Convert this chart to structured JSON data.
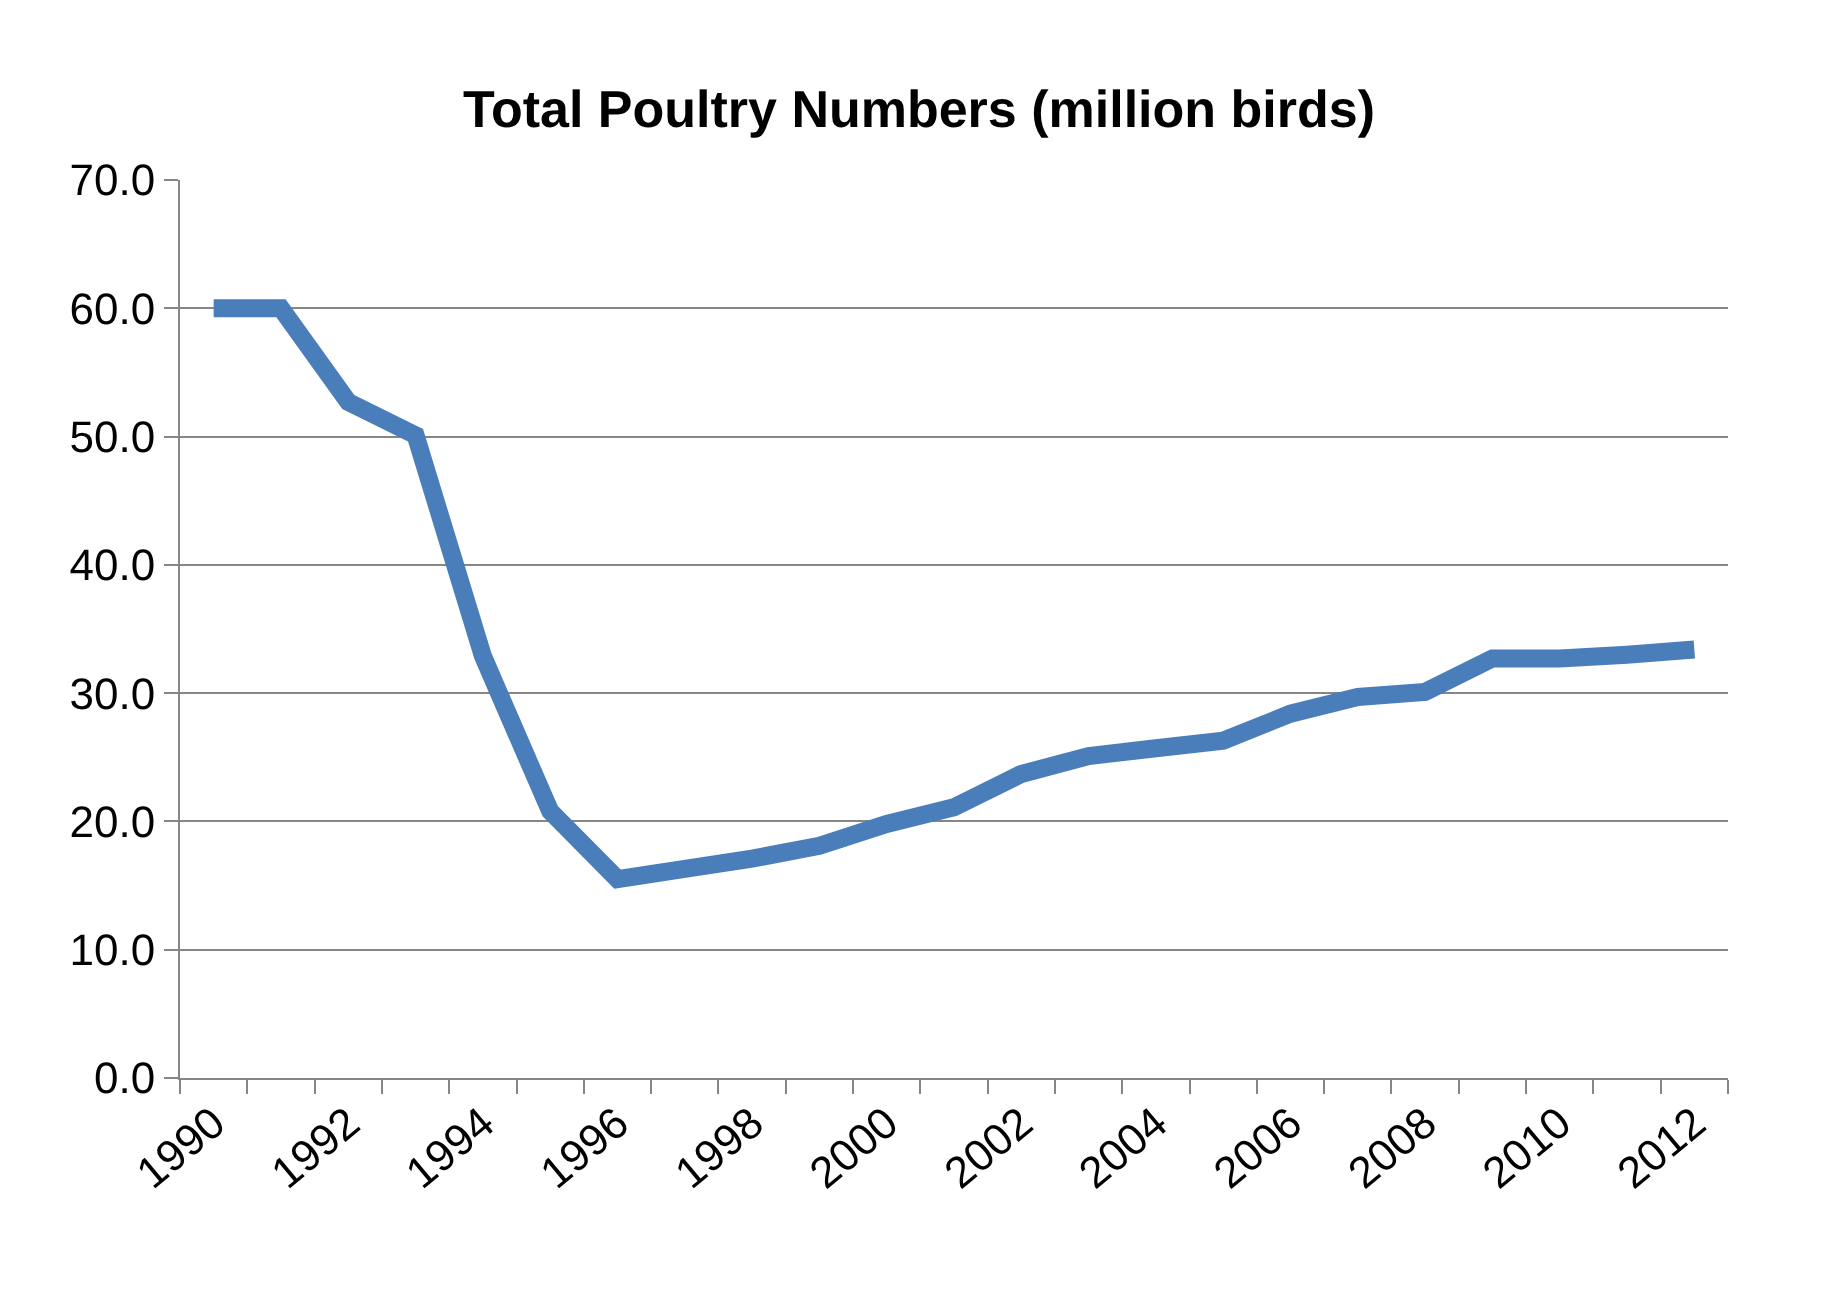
{
  "chart_data": {
    "type": "line",
    "title": "Total Poultry Numbers (million birds)",
    "categories": [
      "1990",
      null,
      "1992",
      null,
      "1994",
      null,
      "1996",
      null,
      "1998",
      null,
      "2000",
      null,
      "2002",
      null,
      "2004",
      null,
      "2006",
      null,
      "2008",
      null,
      "2010",
      null,
      "2012"
    ],
    "series": [
      {
        "color": "#4a7ebb",
        "values": [
          60,
          60,
          52.7,
          50.1,
          32.9,
          20.8,
          15.5,
          16.3,
          17.1,
          18.1,
          19.8,
          21.1,
          23.7,
          25.1,
          25.7,
          26.3,
          28.4,
          29.7,
          30.1,
          32.7,
          32.7,
          33.0,
          33.4
        ]
      }
    ],
    "ylim": [
      0,
      70
    ],
    "yticks": [
      {
        "value": 0,
        "label": "0.0"
      },
      {
        "value": 10,
        "label": "10.0"
      },
      {
        "value": 20,
        "label": "20.0"
      },
      {
        "value": 30,
        "label": "30.0"
      },
      {
        "value": 40,
        "label": "40.0"
      },
      {
        "value": 50,
        "label": "50.0"
      },
      {
        "value": 60,
        "label": "60.0"
      },
      {
        "value": 70,
        "label": "70.0"
      }
    ],
    "grid": "y",
    "legend": false,
    "marker": "none",
    "line_style": "solid"
  }
}
